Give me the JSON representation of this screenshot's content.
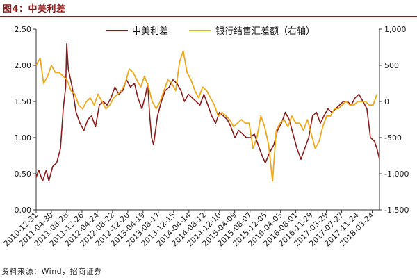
{
  "header": {
    "title": "图4：中美利差"
  },
  "footer": {
    "source": "资料来源：Wind，招商证券"
  },
  "chart_data": {
    "type": "line",
    "x_ticks": [
      "2010-12-31",
      "2011-04-30",
      "2011-08-28",
      "2011-12-26",
      "2012-04-24",
      "2012-08-22",
      "2012-12-20",
      "2013-04-19",
      "2013-08-17",
      "2013-12-15",
      "2014-04-14",
      "2014-08-12",
      "2014-12-10",
      "2015-04-09",
      "2015-08-07",
      "2015-12-05",
      "2016-04-03",
      "2016-08-01",
      "2016-11-29",
      "2017-03-29",
      "2017-07-27",
      "2017-11-24",
      "2018-03-24"
    ],
    "xlim": [
      "2010-12-31",
      "2018-05-20"
    ],
    "left_axis": {
      "ylim": [
        0,
        2.5
      ],
      "ticks": [
        "0.00",
        "0.50",
        "1.00",
        "1.50",
        "2.00",
        "2.50"
      ]
    },
    "right_axis": {
      "ylim": [
        -1500,
        1000
      ],
      "ticks": [
        "-1,500",
        "-1,000",
        "-500",
        "0",
        "500",
        "1,000"
      ]
    },
    "series": [
      {
        "name": "中美利差",
        "axis": "left",
        "color": "#8b1a1a",
        "x": [
          "2010-12-31",
          "2011-01-20",
          "2011-02-20",
          "2011-03-20",
          "2011-04-10",
          "2011-05-10",
          "2011-06-10",
          "2011-07-10",
          "2011-08-01",
          "2011-08-20",
          "2011-08-28",
          "2011-09-10",
          "2011-10-10",
          "2011-11-10",
          "2011-12-10",
          "2012-01-10",
          "2012-02-10",
          "2012-03-10",
          "2012-04-10",
          "2012-05-10",
          "2012-06-10",
          "2012-07-10",
          "2012-08-10",
          "2012-09-10",
          "2012-10-10",
          "2012-11-10",
          "2012-12-10",
          "2013-01-10",
          "2013-02-10",
          "2013-03-10",
          "2013-04-10",
          "2013-05-10",
          "2013-05-25",
          "2013-06-10",
          "2013-06-25",
          "2013-07-10",
          "2013-08-10",
          "2013-09-10",
          "2013-10-10",
          "2013-11-10",
          "2013-12-10",
          "2014-01-10",
          "2014-02-10",
          "2014-03-10",
          "2014-04-10",
          "2014-05-10",
          "2014-06-10",
          "2014-07-10",
          "2014-08-10",
          "2014-09-10",
          "2014-10-10",
          "2014-11-10",
          "2014-12-10",
          "2015-01-10",
          "2015-02-10",
          "2015-03-10",
          "2015-04-10",
          "2015-05-10",
          "2015-06-10",
          "2015-07-10",
          "2015-08-10",
          "2015-09-10",
          "2015-10-10",
          "2015-11-10",
          "2015-12-05",
          "2016-01-10",
          "2016-02-10",
          "2016-03-10",
          "2016-04-10",
          "2016-05-10",
          "2016-06-10",
          "2016-07-10",
          "2016-08-10",
          "2016-09-10",
          "2016-10-10",
          "2016-11-10",
          "2016-12-10",
          "2017-01-10",
          "2017-02-10",
          "2017-03-10",
          "2017-04-10",
          "2017-05-10",
          "2017-06-10",
          "2017-07-10",
          "2017-08-10",
          "2017-09-10",
          "2017-10-10",
          "2017-11-10",
          "2017-12-10",
          "2018-01-10",
          "2018-02-10",
          "2018-03-10",
          "2018-04-10",
          "2018-04-30",
          "2018-05-20"
        ],
        "values": [
          0.45,
          0.55,
          0.4,
          0.55,
          0.4,
          0.6,
          0.65,
          0.85,
          1.4,
          1.7,
          2.3,
          1.95,
          1.7,
          1.35,
          1.2,
          1.1,
          1.25,
          1.3,
          1.15,
          1.45,
          1.5,
          1.45,
          1.55,
          1.7,
          1.6,
          1.65,
          1.8,
          1.7,
          1.75,
          1.55,
          1.4,
          1.6,
          1.75,
          1.3,
          1.0,
          0.9,
          1.3,
          1.5,
          1.65,
          1.7,
          1.8,
          1.75,
          1.65,
          1.5,
          1.6,
          1.55,
          1.5,
          1.45,
          1.6,
          1.45,
          1.3,
          1.2,
          1.35,
          1.3,
          1.25,
          1.15,
          1.0,
          1.1,
          1.05,
          1.0,
          1.0,
          1.05,
          0.9,
          0.75,
          0.65,
          0.8,
          0.9,
          1.1,
          1.2,
          1.35,
          1.25,
          1.05,
          0.85,
          0.7,
          0.85,
          1.0,
          1.3,
          1.35,
          1.2,
          1.3,
          1.4,
          1.35,
          1.4,
          1.45,
          1.5,
          1.5,
          1.45,
          1.55,
          1.6,
          1.5,
          1.4,
          1.0,
          0.95,
          0.85,
          0.7
        ]
      },
      {
        "name": "银行结售汇差额（右轴）",
        "axis": "right",
        "color": "#f0a818",
        "x": [
          "2010-12-31",
          "2011-01-31",
          "2011-02-28",
          "2011-03-31",
          "2011-04-30",
          "2011-05-31",
          "2011-06-30",
          "2011-07-31",
          "2011-08-31",
          "2011-09-30",
          "2011-10-31",
          "2011-11-30",
          "2011-12-31",
          "2012-01-31",
          "2012-02-29",
          "2012-03-31",
          "2012-04-30",
          "2012-05-31",
          "2012-06-30",
          "2012-07-31",
          "2012-08-31",
          "2012-09-30",
          "2012-10-31",
          "2012-11-30",
          "2012-12-31",
          "2013-01-31",
          "2013-02-28",
          "2013-03-31",
          "2013-04-30",
          "2013-05-31",
          "2013-06-30",
          "2013-07-31",
          "2013-08-31",
          "2013-09-30",
          "2013-10-31",
          "2013-11-30",
          "2013-12-31",
          "2014-01-31",
          "2014-02-28",
          "2014-03-31",
          "2014-04-30",
          "2014-05-31",
          "2014-06-30",
          "2014-07-31",
          "2014-08-31",
          "2014-09-30",
          "2014-10-31",
          "2014-11-30",
          "2014-12-31",
          "2015-01-31",
          "2015-02-28",
          "2015-03-31",
          "2015-04-30",
          "2015-05-31",
          "2015-06-30",
          "2015-07-31",
          "2015-08-31",
          "2015-09-30",
          "2015-10-31",
          "2015-11-30",
          "2015-12-31",
          "2016-01-31",
          "2016-02-29",
          "2016-03-31",
          "2016-04-30",
          "2016-05-31",
          "2016-06-30",
          "2016-07-31",
          "2016-08-31",
          "2016-09-30",
          "2016-10-31",
          "2016-11-30",
          "2016-12-31",
          "2017-01-31",
          "2017-02-28",
          "2017-03-31",
          "2017-04-30",
          "2017-05-31",
          "2017-06-30",
          "2017-07-31",
          "2017-08-31",
          "2017-09-30",
          "2017-10-31",
          "2017-11-30",
          "2017-12-31",
          "2018-01-31",
          "2018-02-28",
          "2018-03-31",
          "2018-04-30"
        ],
        "values": [
          500,
          600,
          250,
          350,
          500,
          400,
          400,
          350,
          300,
          150,
          100,
          -50,
          -100,
          0,
          50,
          -50,
          100,
          0,
          -100,
          -50,
          50,
          100,
          150,
          250,
          450,
          400,
          300,
          200,
          350,
          200,
          0,
          -100,
          0,
          150,
          300,
          250,
          150,
          550,
          700,
          400,
          300,
          150,
          50,
          200,
          150,
          50,
          -50,
          -200,
          -150,
          -200,
          -250,
          -350,
          -300,
          -250,
          -300,
          -300,
          -650,
          -500,
          -200,
          -350,
          -600,
          -1100,
          -400,
          -300,
          -250,
          -350,
          -200,
          -300,
          -300,
          -400,
          -250,
          -450,
          -650,
          -550,
          -350,
          -200,
          -200,
          -100,
          -100,
          -50,
          0,
          -50,
          -50,
          0,
          0,
          0,
          -50,
          -50,
          100
        ]
      }
    ],
    "legend": "top-center",
    "grid": false
  }
}
